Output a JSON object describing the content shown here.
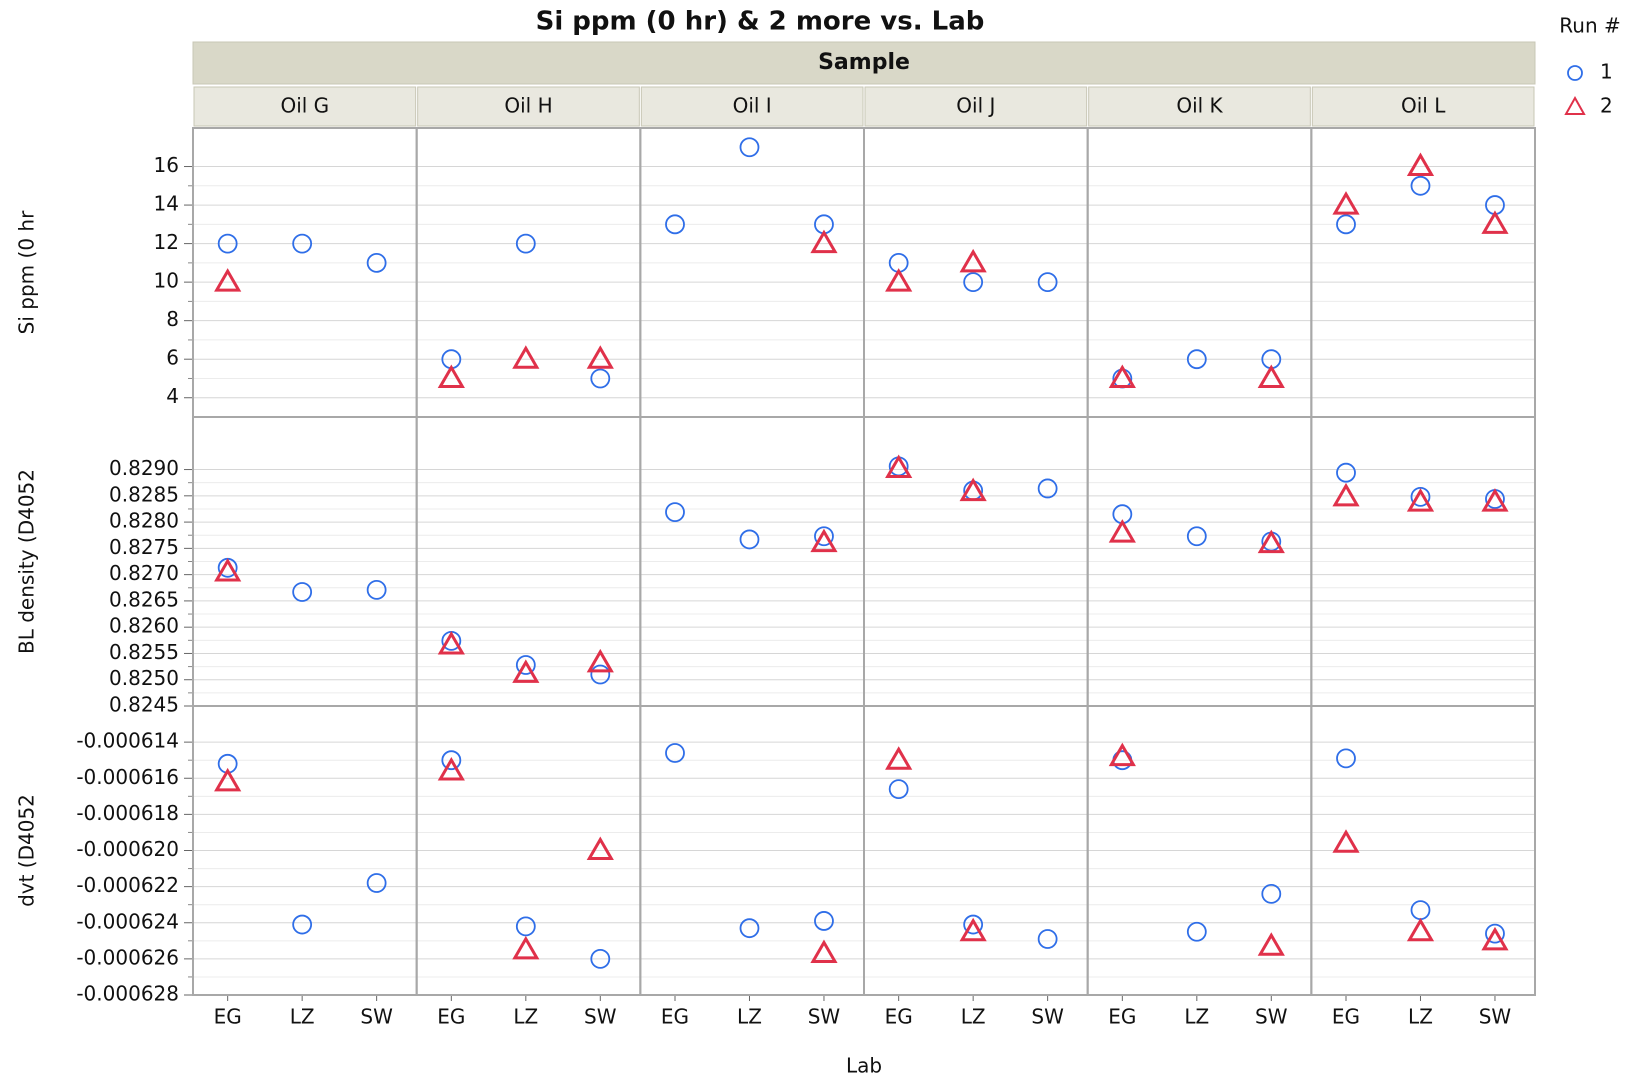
{
  "chart_data": {
    "type": "scatter",
    "title": "Si ppm (0 hr) & 2 more vs. Lab",
    "group_title": "Sample",
    "panels": [
      "Oil G",
      "Oil H",
      "Oil I",
      "Oil J",
      "Oil K",
      "Oil L"
    ],
    "categories": [
      "EG",
      "LZ",
      "SW"
    ],
    "xlabel": "Lab",
    "legend_title": "Run #",
    "legend": "right",
    "grid": true,
    "series": [
      {
        "name": "1",
        "color": "#2f6ee8",
        "marker": "circle"
      },
      {
        "name": "2",
        "color": "#e0314a",
        "marker": "triangle"
      }
    ],
    "rows": [
      {
        "ylabel": "Si ppm (0 hr",
        "ylim": [
          3,
          18
        ],
        "yticks": [
          4,
          6,
          8,
          10,
          12,
          14,
          16
        ],
        "values": [
          [
            12,
            12,
            11,
            6,
            12,
            5,
            13,
            17,
            13,
            11,
            10,
            10,
            5,
            6,
            6,
            13,
            15,
            14
          ],
          [
            10,
            null,
            null,
            5,
            6,
            6,
            null,
            null,
            12,
            10,
            11,
            null,
            5,
            null,
            5,
            14,
            16,
            13
          ]
        ]
      },
      {
        "ylabel": "BL density (D4052",
        "ylim": [
          0.8245,
          0.83
        ],
        "yticks": [
          {
            "value": 0.8245,
            "label": "0.8245"
          },
          {
            "value": 0.825,
            "label": "0.8250"
          },
          {
            "value": 0.8255,
            "label": "0.8255"
          },
          {
            "value": 0.826,
            "label": "0.8260"
          },
          {
            "value": 0.8265,
            "label": "0.8265"
          },
          {
            "value": 0.827,
            "label": "0.8270"
          },
          {
            "value": 0.8275,
            "label": "0.8275"
          },
          {
            "value": 0.828,
            "label": "0.8280"
          },
          {
            "value": 0.8285,
            "label": "0.8285"
          },
          {
            "value": 0.829,
            "label": "0.8290"
          }
        ],
        "values": [
          [
            0.82713,
            0.82667,
            0.82671,
            0.82574,
            0.82528,
            0.8251,
            0.82819,
            0.82767,
            0.82773,
            0.82906,
            0.8286,
            0.82864,
            0.82815,
            0.82773,
            0.82763,
            0.82894,
            0.82848,
            0.82844
          ],
          [
            0.82705,
            null,
            null,
            0.82566,
            0.82512,
            0.82532,
            null,
            null,
            0.82761,
            0.82902,
            0.82858,
            null,
            0.82779,
            null,
            0.82759,
            0.82848,
            0.82838,
            0.82838
          ]
        ]
      },
      {
        "ylabel": "dvt (D4052",
        "ylim": [
          -0.000628,
          -0.000612
        ],
        "yticks": [
          -0.000628,
          -0.000626,
          -0.000624,
          -0.000622,
          {
            "value": -0.00062,
            "label": "-0.000620"
          },
          -0.000618,
          -0.000616,
          -0.000614
        ],
        "values": [
          [
            -0.0006152,
            -0.0006241,
            -0.0006218,
            -0.000615,
            -0.0006242,
            -0.000626,
            -0.0006146,
            -0.0006243,
            -0.0006239,
            -0.0006166,
            -0.0006241,
            -0.0006249,
            -0.000615,
            -0.0006245,
            -0.0006224,
            -0.0006149,
            -0.0006233,
            -0.0006246
          ],
          [
            -0.0006162,
            null,
            null,
            -0.0006156,
            -0.0006255,
            -0.00062,
            null,
            null,
            -0.0006257,
            -0.000615,
            -0.0006245,
            null,
            -0.0006148,
            null,
            -0.0006253,
            -0.0006196,
            -0.0006245,
            -0.000625
          ]
        ]
      }
    ]
  }
}
